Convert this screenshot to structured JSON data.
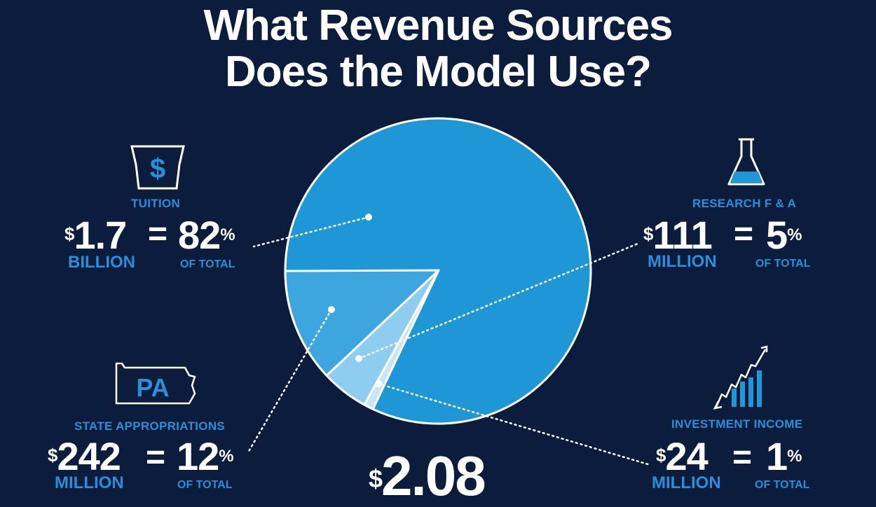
{
  "title_line1": "What Revenue Sources",
  "title_line2": "Does the Model Use?",
  "total": {
    "currency": "$",
    "amount": "2.08"
  },
  "chart_data": {
    "type": "pie",
    "title": "What Revenue Sources Does the Model Use?",
    "slices": [
      {
        "label": "TUITION",
        "amount": "1.7",
        "unit": "BILLION",
        "percent": 82,
        "color": "#1f96d6"
      },
      {
        "label": "STATE APPROPRIATIONS",
        "amount": "242",
        "unit": "MILLION",
        "percent": 12,
        "color": "#3ea6de"
      },
      {
        "label": "RESEARCH F & A",
        "amount": "111",
        "unit": "MILLION",
        "percent": 5,
        "color": "#8fcdf0"
      },
      {
        "label": "INVESTMENT INCOME",
        "amount": "24",
        "unit": "MILLION",
        "percent": 1,
        "color": "#c6e6f8"
      }
    ],
    "slice_border_color": "#ffffff"
  },
  "callouts": {
    "tuition": {
      "label": "TUITION",
      "currency": "$",
      "amount": "1.7",
      "unit": "BILLION",
      "equals": "=",
      "percent": "82",
      "percent_sign": "%",
      "of_total": "OF TOTAL",
      "icon": "keystone-dollar-icon",
      "icon_text": "$"
    },
    "research": {
      "label": "RESEARCH F & A",
      "currency": "$",
      "amount": "111",
      "unit": "MILLION",
      "equals": "=",
      "percent": "5",
      "percent_sign": "%",
      "of_total": "OF TOTAL",
      "icon": "flask-icon"
    },
    "state": {
      "label": "STATE APPROPRIATIONS",
      "currency": "$",
      "amount": "242",
      "unit": "MILLION",
      "equals": "=",
      "percent": "12",
      "percent_sign": "%",
      "of_total": "OF TOTAL",
      "icon": "pennsylvania-map-icon",
      "icon_text": "PA"
    },
    "investment": {
      "label": "INVESTMENT INCOME",
      "currency": "$",
      "amount": "24",
      "unit": "MILLION",
      "equals": "=",
      "percent": "1",
      "percent_sign": "%",
      "of_total": "OF TOTAL",
      "icon": "growth-chart-icon"
    }
  }
}
